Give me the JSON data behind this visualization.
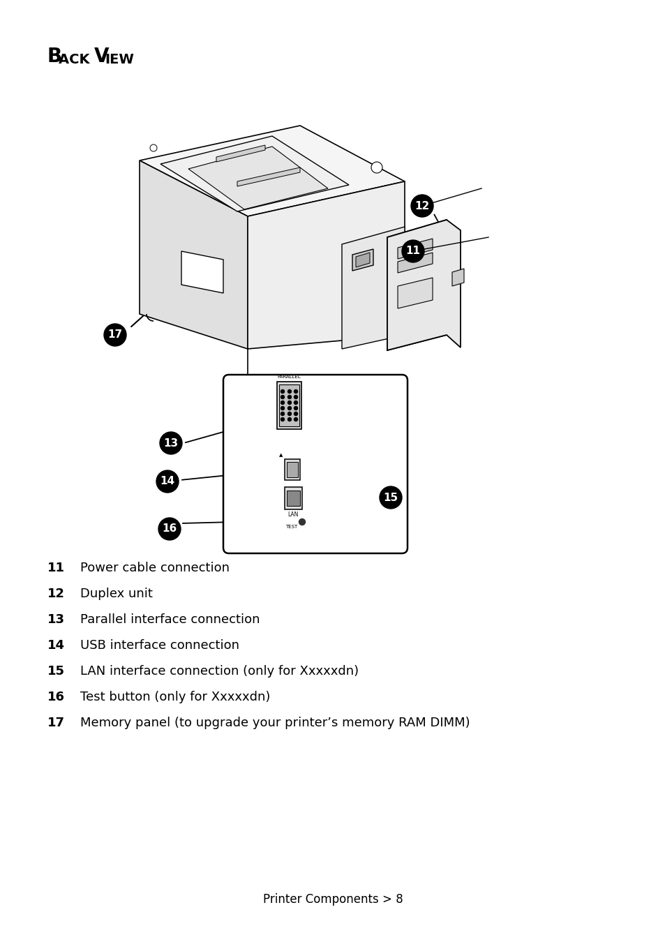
{
  "title_parts": [
    "B",
    "ACK ",
    "V",
    "IEW"
  ],
  "title_bold": [
    true,
    true,
    true,
    true
  ],
  "bg_color": "#ffffff",
  "footer_text": "Printer Components > 8",
  "legend_items": [
    {
      "num": "11",
      "text": "Power cable connection"
    },
    {
      "num": "12",
      "text": "Duplex unit"
    },
    {
      "num": "13",
      "text": "Parallel interface connection"
    },
    {
      "num": "14",
      "text": "USB interface connection"
    },
    {
      "num": "15",
      "text": "LAN interface connection (only for Xxxxxdn)"
    },
    {
      "num": "16",
      "text": "Test button (only for Xxxxxdn)"
    },
    {
      "num": "17",
      "text": "Memory panel (to upgrade your printer’s memory RAM DIMM)"
    }
  ]
}
